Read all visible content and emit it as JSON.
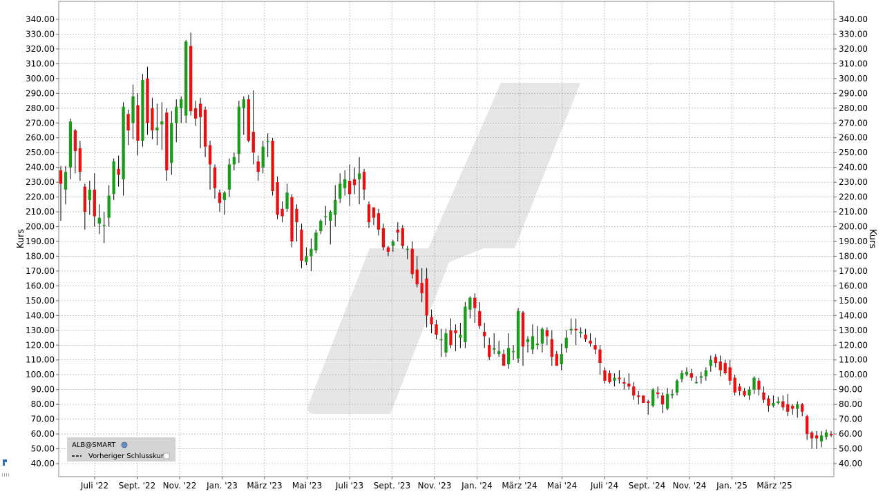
{
  "chart_data": {
    "type": "candlestick",
    "ylabel": "Kurs",
    "ylim": [
      35,
      345
    ],
    "y_ticks": [
      40,
      50,
      60,
      70,
      80,
      90,
      100,
      110,
      120,
      130,
      140,
      150,
      160,
      170,
      180,
      190,
      200,
      210,
      220,
      230,
      240,
      250,
      260,
      270,
      280,
      290,
      300,
      310,
      320,
      330,
      340
    ],
    "y_tick_labels": [
      "40.00",
      "50.00",
      "60.00",
      "70.00",
      "80.00",
      "90.00",
      "100.00",
      "110.00",
      "120.00",
      "130.00",
      "140.00",
      "150.00",
      "160.00",
      "170.00",
      "180.00",
      "190.00",
      "200.00",
      "210.00",
      "220.00",
      "230.00",
      "240.00",
      "250.00",
      "260.00",
      "270.00",
      "280.00",
      "290.00",
      "300.00",
      "310.00",
      "320.00",
      "330.00",
      "340.00"
    ],
    "x_ticks": [
      "Juli '22",
      "Sept. '22",
      "Nov. '22",
      "Jan. '23",
      "März '23",
      "Mai '23",
      "Juli '23",
      "Sept. '23",
      "Nov. '23",
      "Jan. '24",
      "März '24",
      "Mai '24",
      "Juli '24",
      "Sept. '24",
      "Nov. '24",
      "Jan. '25",
      "März '25"
    ],
    "grid": true,
    "legend": {
      "placement": "bottom-left",
      "symbol": "ALB@SMART",
      "items": [
        "Vorheriger Schlusskurs"
      ]
    },
    "colors": {
      "up": "#1a9c1a",
      "down": "#e81010",
      "grid": "#9a9a9a",
      "watermark": "#e6e6e6"
    },
    "candles": [
      [
        238,
        229,
        241,
        204
      ],
      [
        225,
        237,
        241,
        215
      ],
      [
        240,
        271,
        273,
        232
      ],
      [
        265,
        251,
        266,
        236
      ],
      [
        253,
        237,
        258,
        231
      ],
      [
        227,
        210,
        229,
        198
      ],
      [
        218,
        225,
        231,
        208
      ],
      [
        225,
        207,
        236,
        200
      ],
      [
        202,
        206,
        215,
        195
      ],
      [
        201,
        201,
        210,
        189
      ],
      [
        206,
        221,
        228,
        200
      ],
      [
        222,
        244,
        246,
        218
      ],
      [
        239,
        235,
        248,
        227
      ],
      [
        232,
        281,
        284,
        221
      ],
      [
        276,
        265,
        279,
        255
      ],
      [
        270,
        288,
        296,
        259
      ],
      [
        282,
        258,
        290,
        248
      ],
      [
        258,
        299,
        303,
        254
      ],
      [
        300,
        270,
        308,
        262
      ],
      [
        280,
        265,
        287,
        259
      ],
      [
        265,
        267,
        283,
        255
      ],
      [
        269,
        271,
        284,
        252
      ],
      [
        277,
        238,
        280,
        231
      ],
      [
        243,
        270,
        278,
        235
      ],
      [
        270,
        281,
        286,
        257
      ],
      [
        280,
        286,
        288,
        270
      ],
      [
        275,
        325,
        326,
        270
      ],
      [
        322,
        278,
        331,
        275
      ],
      [
        280,
        273,
        285,
        268
      ],
      [
        283,
        274,
        287,
        253
      ],
      [
        279,
        254,
        281,
        247
      ],
      [
        255,
        242,
        258,
        225
      ],
      [
        240,
        226,
        242,
        219
      ],
      [
        223,
        216,
        225,
        210
      ],
      [
        218,
        223,
        224,
        208
      ],
      [
        225,
        242,
        246,
        220
      ],
      [
        242,
        247,
        250,
        238
      ],
      [
        249,
        281,
        285,
        243
      ],
      [
        280,
        286,
        288,
        262
      ],
      [
        286,
        258,
        289,
        257
      ],
      [
        264,
        250,
        292,
        242
      ],
      [
        244,
        237,
        248,
        231
      ],
      [
        240,
        254,
        258,
        236
      ],
      [
        258,
        258,
        263,
        247
      ],
      [
        258,
        224,
        260,
        221
      ],
      [
        230,
        208,
        234,
        205
      ],
      [
        212,
        207,
        217,
        203
      ],
      [
        212,
        223,
        229,
        210
      ],
      [
        220,
        190,
        222,
        186
      ],
      [
        212,
        203,
        215,
        190
      ],
      [
        198,
        177,
        202,
        172
      ],
      [
        176,
        180,
        186,
        174
      ],
      [
        180,
        185,
        192,
        170
      ],
      [
        184,
        196,
        198,
        182
      ],
      [
        197,
        204,
        205,
        195
      ],
      [
        207,
        207,
        214,
        201
      ],
      [
        204,
        210,
        211,
        188
      ],
      [
        208,
        218,
        228,
        200
      ],
      [
        219,
        229,
        236,
        216
      ],
      [
        226,
        232,
        238,
        221
      ],
      [
        231,
        222,
        242,
        214
      ],
      [
        232,
        228,
        240,
        222
      ],
      [
        232,
        236,
        247,
        215
      ],
      [
        237,
        225,
        239,
        218
      ],
      [
        215,
        203,
        217,
        199
      ],
      [
        213,
        206,
        213,
        201
      ],
      [
        209,
        198,
        212,
        194
      ],
      [
        199,
        186,
        202,
        184
      ],
      [
        186,
        183,
        187,
        180
      ],
      [
        187,
        190,
        191,
        183
      ],
      [
        198,
        196,
        203,
        190
      ],
      [
        199,
        187,
        201,
        185
      ],
      [
        185,
        185,
        187,
        178
      ],
      [
        185,
        168,
        190,
        165
      ],
      [
        171,
        161,
        180,
        159
      ],
      [
        162,
        155,
        172,
        149
      ],
      [
        165,
        140,
        172,
        132
      ],
      [
        139,
        134,
        144,
        128
      ],
      [
        134,
        127,
        137,
        124
      ],
      [
        124,
        124,
        131,
        112
      ],
      [
        115,
        128,
        131,
        112
      ],
      [
        130,
        120,
        138,
        118
      ],
      [
        130,
        128,
        134,
        116
      ],
      [
        125,
        127,
        135,
        118
      ],
      [
        122,
        146,
        149,
        118
      ],
      [
        144,
        152,
        153,
        138
      ],
      [
        152,
        145,
        155,
        135
      ],
      [
        143,
        133,
        149,
        131
      ],
      [
        129,
        126,
        135,
        118
      ],
      [
        120,
        112,
        125,
        110
      ],
      [
        117,
        118,
        128,
        114
      ],
      [
        114,
        116,
        123,
        112
      ],
      [
        114,
        106,
        117,
        112
      ],
      [
        107,
        118,
        128,
        104
      ],
      [
        116,
        116,
        120,
        110
      ],
      [
        111,
        143,
        145,
        108
      ],
      [
        142,
        119,
        143,
        106
      ],
      [
        122,
        124,
        126,
        115
      ],
      [
        117,
        126,
        134,
        114
      ],
      [
        120,
        121,
        133,
        117
      ],
      [
        121,
        131,
        132,
        115
      ],
      [
        130,
        126,
        132,
        120
      ],
      [
        124,
        112,
        130,
        106
      ],
      [
        114,
        106,
        116,
        108
      ],
      [
        107,
        114,
        121,
        103
      ],
      [
        118,
        125,
        130,
        115
      ],
      [
        130,
        131,
        138,
        127
      ],
      [
        131,
        130,
        138,
        120
      ],
      [
        128,
        129,
        132,
        125
      ],
      [
        127,
        124,
        131,
        122
      ],
      [
        123,
        121,
        128,
        119
      ],
      [
        120,
        117,
        125,
        114
      ],
      [
        117,
        108,
        120,
        100
      ],
      [
        103,
        96,
        105,
        94
      ],
      [
        101,
        95,
        103,
        94
      ],
      [
        96,
        98,
        101,
        92
      ],
      [
        98,
        97,
        103,
        94
      ],
      [
        95,
        94,
        98,
        90
      ],
      [
        94,
        92,
        101,
        90
      ],
      [
        92,
        86,
        95,
        83
      ],
      [
        86,
        85,
        89,
        80
      ],
      [
        86,
        81,
        83,
        81
      ],
      [
        82,
        81,
        83,
        73
      ],
      [
        79,
        90,
        91,
        78
      ],
      [
        88,
        87,
        92,
        84
      ],
      [
        86,
        80,
        88,
        74
      ],
      [
        77,
        87,
        91,
        76
      ],
      [
        86,
        87,
        90,
        84
      ],
      [
        88,
        96,
        97,
        86
      ],
      [
        97,
        101,
        103,
        95
      ],
      [
        100,
        102,
        105,
        99
      ],
      [
        101,
        98,
        104,
        96
      ],
      [
        95,
        95,
        99,
        94
      ],
      [
        98,
        99,
        102,
        94
      ],
      [
        99,
        103,
        105,
        96
      ],
      [
        106,
        110,
        113,
        102
      ],
      [
        112,
        108,
        114,
        105
      ],
      [
        109,
        103,
        113,
        99
      ],
      [
        108,
        101,
        110,
        100
      ],
      [
        105,
        96,
        110,
        93
      ],
      [
        98,
        88,
        100,
        86
      ],
      [
        92,
        89,
        94,
        86
      ],
      [
        89,
        86,
        91,
        85
      ],
      [
        86,
        90,
        92,
        83
      ],
      [
        90,
        98,
        99,
        87
      ],
      [
        96,
        90,
        98,
        86
      ],
      [
        88,
        83,
        92,
        81
      ],
      [
        84,
        79,
        86,
        75
      ],
      [
        79,
        81,
        86,
        78
      ],
      [
        81,
        82,
        85,
        80
      ],
      [
        82,
        78,
        86,
        76
      ],
      [
        80,
        75,
        87,
        72
      ],
      [
        79,
        77,
        80,
        73
      ],
      [
        77,
        80,
        82,
        71
      ],
      [
        80,
        75,
        81,
        72
      ],
      [
        72,
        60,
        73,
        56
      ],
      [
        61,
        57,
        62,
        50
      ],
      [
        59,
        57,
        62,
        50
      ],
      [
        55,
        59,
        62,
        51
      ],
      [
        58,
        61,
        63,
        56
      ],
      [
        60,
        59,
        62,
        58
      ]
    ]
  }
}
